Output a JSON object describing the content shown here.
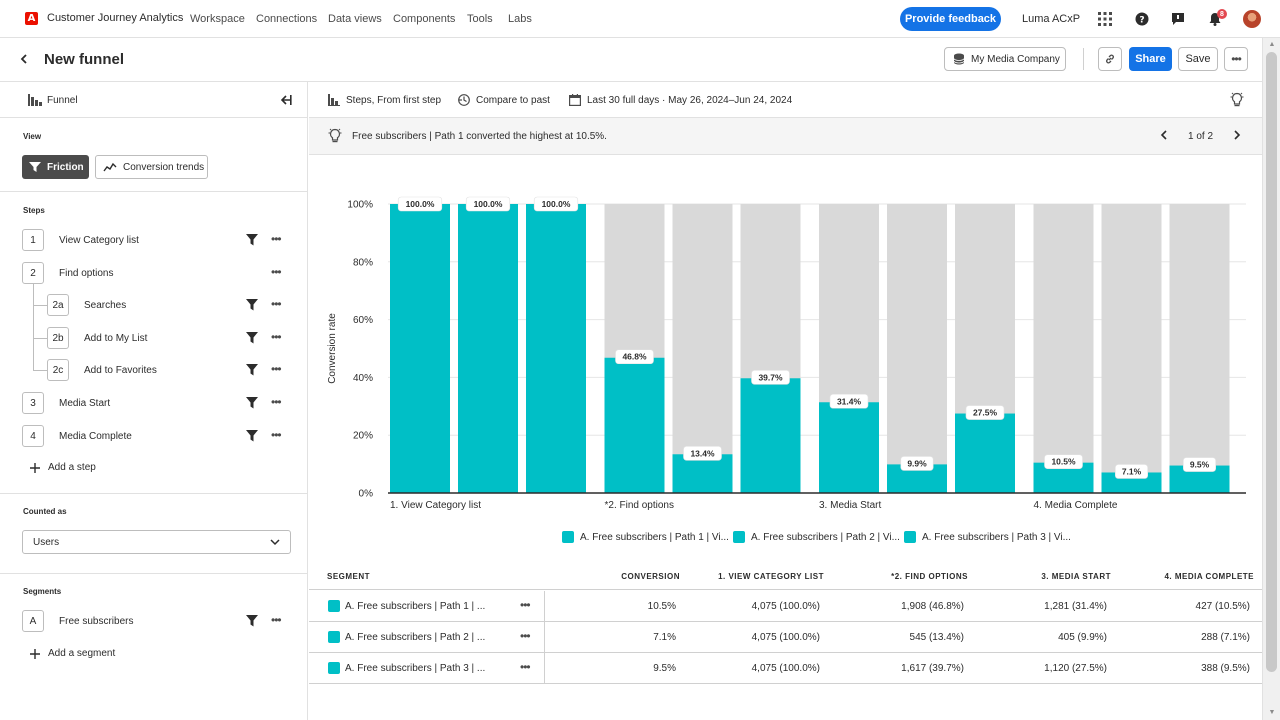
{
  "topnav": {
    "app_title": "Customer Journey Analytics",
    "items": [
      "Workspace",
      "Connections",
      "Data views",
      "Components",
      "Tools",
      "Labs"
    ],
    "feedback_label": "Provide feedback",
    "org_name": "Luma ACxP",
    "notification_count": "8"
  },
  "header": {
    "title": "New funnel",
    "company": "My Media Company",
    "share_label": "Share",
    "save_label": "Save"
  },
  "left_panel": {
    "title": "Funnel",
    "view_label": "View",
    "view_options": [
      "Friction",
      "Conversion trends"
    ],
    "steps_label": "Steps",
    "steps": [
      {
        "num": "1",
        "label": "View Category list",
        "filter": true
      },
      {
        "num": "2",
        "label": "Find options",
        "filter": false
      },
      {
        "num": "2a",
        "label": "Searches",
        "filter": true
      },
      {
        "num": "2b",
        "label": "Add to My List",
        "filter": true
      },
      {
        "num": "2c",
        "label": "Add to Favorites",
        "filter": true
      },
      {
        "num": "3",
        "label": "Media Start",
        "filter": true
      },
      {
        "num": "4",
        "label": "Media Complete",
        "filter": true
      }
    ],
    "add_step": "Add a step",
    "counted_as_label": "Counted as",
    "counted_as_value": "Users",
    "segments_label": "Segments",
    "segments": [
      {
        "letter": "A",
        "label": "Free subscribers"
      }
    ],
    "add_segment": "Add a segment"
  },
  "toolbar": {
    "steps_mode": "Steps, From first step",
    "compare": "Compare to past",
    "date_range": "Last 30 full days · May 26, 2024–Jun 24, 2024"
  },
  "insight": {
    "text": "Free subscribers | Path 1 converted the highest at 10.5%.",
    "page": "1 of 2"
  },
  "chart_data": {
    "type": "bar",
    "ylabel": "Conversion rate",
    "ylim": [
      0,
      100
    ],
    "yticks": [
      "0%",
      "20%",
      "40%",
      "60%",
      "80%",
      "100%"
    ],
    "categories": [
      "1. View Category list",
      "*2. Find options",
      "3. Media Start",
      "4. Media Complete"
    ],
    "series": [
      {
        "name": "A. Free subscribers | Path 1 | Vi...",
        "values": [
          100.0,
          46.8,
          31.4,
          10.5
        ]
      },
      {
        "name": "A. Free subscribers | Path 2 | Vi...",
        "values": [
          100.0,
          13.4,
          9.9,
          7.1
        ]
      },
      {
        "name": "A. Free subscribers | Path 3 | Vi...",
        "values": [
          100.0,
          39.7,
          27.5,
          9.5
        ]
      }
    ],
    "bar_color": "#00bfc6",
    "remainder_color": "#d9d9d9"
  },
  "table": {
    "headers": [
      "SEGMENT",
      "CONVERSION",
      "1. VIEW CATEGORY LIST",
      "*2. FIND OPTIONS",
      "3. MEDIA START",
      "4. MEDIA COMPLETE"
    ],
    "rows": [
      {
        "segment": "A. Free subscribers | Path 1 | ...",
        "conversion": "10.5%",
        "c1": "4,075 (100.0%)",
        "c2": "1,908 (46.8%)",
        "c3": "1,281 (31.4%)",
        "c4": "427 (10.5%)"
      },
      {
        "segment": "A. Free subscribers | Path 2 | ...",
        "conversion": "7.1%",
        "c1": "4,075 (100.0%)",
        "c2": "545 (13.4%)",
        "c3": "405 (9.9%)",
        "c4": "288 (7.1%)"
      },
      {
        "segment": "A. Free subscribers | Path 3 | ...",
        "conversion": "9.5%",
        "c1": "4,075 (100.0%)",
        "c2": "1,617 (39.7%)",
        "c3": "1,120 (27.5%)",
        "c4": "388 (9.5%)"
      }
    ]
  },
  "colors": {
    "accent": "#1473e6",
    "teal": "#00bfc6",
    "notification": "#e34850",
    "adobe_red": "#eb1000"
  }
}
